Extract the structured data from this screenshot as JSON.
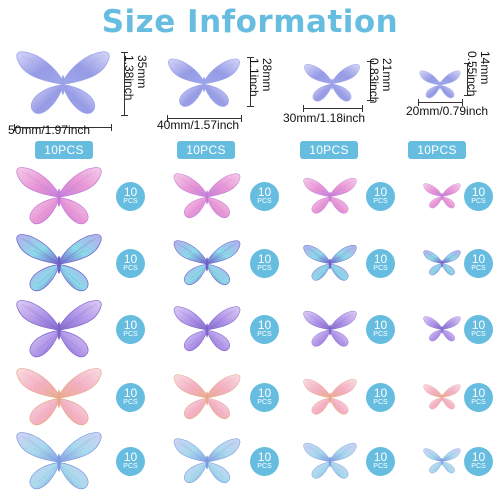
{
  "title": "Size Information",
  "sizes": [
    {
      "width_label": "50mm/1.97inch",
      "height_mm": "35mm",
      "height_in": "1.38inch",
      "badge": "10PCS"
    },
    {
      "width_label": "40mm/1.57inch",
      "height_mm": "28mm",
      "height_in": "1.1inch",
      "badge": "10PCS"
    },
    {
      "width_label": "30mm/1.18inch",
      "height_mm": "21mm",
      "height_in": "0.83inch",
      "badge": "10PCS"
    },
    {
      "width_label": "20mm/0.79inch",
      "height_mm": "14mm",
      "height_in": "0.55inch",
      "badge": "10PCS"
    }
  ],
  "quantity_badge": {
    "count": "10",
    "unit": "PCS"
  },
  "rows": [
    {
      "colors": [
        "#e58ad0",
        "#f4c3e6",
        "#c27cd8"
      ]
    },
    {
      "colors": [
        "#7fd6e6",
        "#a7a1ea",
        "#6b5fc8"
      ]
    },
    {
      "colors": [
        "#a88ae6",
        "#d7c3f2",
        "#7e64c9"
      ]
    },
    {
      "colors": [
        "#f2a7bf",
        "#f7d8de",
        "#e8a98a"
      ]
    },
    {
      "colors": [
        "#9fd6ea",
        "#c7c8f2",
        "#7d9be0"
      ]
    }
  ],
  "header_color": "#9aa3ea",
  "accent_color": "#66bde0"
}
